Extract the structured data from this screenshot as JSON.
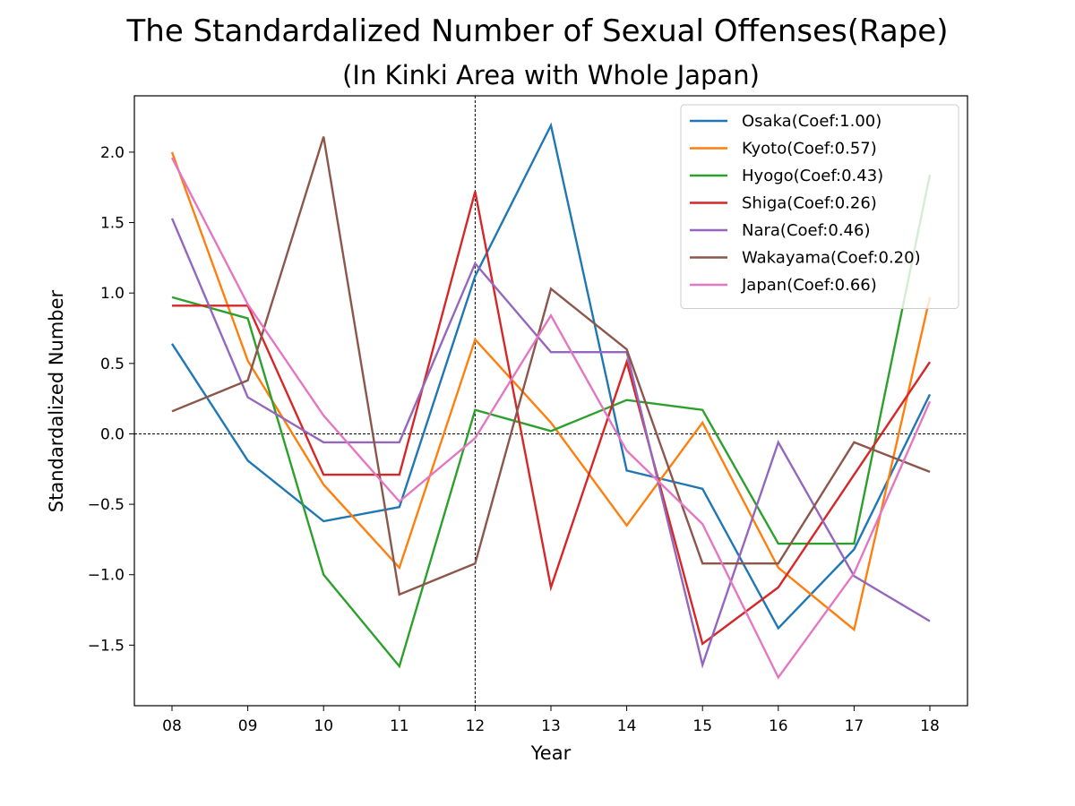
{
  "chart_data": {
    "type": "line",
    "title": "The Standardalized Number of Sexual Offenses(Rape)",
    "subtitle": "(In Kinki Area with Whole Japan)",
    "xlabel": "Year",
    "ylabel": "Standardalized Number",
    "categories": [
      "08",
      "09",
      "10",
      "11",
      "12",
      "13",
      "14",
      "15",
      "16",
      "17",
      "18"
    ],
    "ylim": [
      -1.93,
      2.4
    ],
    "yticks": [
      {
        "value": 2.0,
        "label": "2.0"
      },
      {
        "value": 1.5,
        "label": "1.5"
      },
      {
        "value": 1.0,
        "label": "1.0"
      },
      {
        "value": 0.5,
        "label": "0.5"
      },
      {
        "value": 0.0,
        "label": "0.0"
      },
      {
        "value": -0.5,
        "label": "−0.5"
      },
      {
        "value": -1.0,
        "label": "−1.0"
      },
      {
        "value": -1.5,
        "label": "−1.5"
      }
    ],
    "reference_lines": {
      "vertical_category": "12",
      "horizontal_value": 0.0
    },
    "grid": false,
    "legend_placement": "top-right",
    "series": [
      {
        "name": "Osaka(Coef:1.00)",
        "color": "#1f77b4",
        "values": [
          0.64,
          -0.19,
          -0.62,
          -0.52,
          1.12,
          2.19,
          -0.26,
          -0.39,
          -1.38,
          -0.82,
          0.28
        ]
      },
      {
        "name": "Kyoto(Coef:0.57)",
        "color": "#ff7f0e",
        "values": [
          2.0,
          0.52,
          -0.36,
          -0.95,
          0.67,
          0.08,
          -0.65,
          0.08,
          -0.95,
          -1.39,
          0.97
        ]
      },
      {
        "name": "Hyogo(Coef:0.43)",
        "color": "#2ca02c",
        "values": [
          0.97,
          0.82,
          -1.0,
          -1.65,
          0.17,
          0.02,
          0.24,
          0.17,
          -0.78,
          -0.78,
          1.84
        ]
      },
      {
        "name": "Shiga(Coef:0.26)",
        "color": "#d62728",
        "values": [
          0.91,
          0.91,
          -0.29,
          -0.29,
          1.72,
          -1.09,
          0.51,
          -1.49,
          -1.09,
          -0.29,
          0.51
        ]
      },
      {
        "name": "Nara(Coef:0.46)",
        "color": "#9467bd",
        "values": [
          1.53,
          0.26,
          -0.06,
          -0.06,
          1.21,
          0.58,
          0.58,
          -1.64,
          -0.06,
          -1.01,
          -1.33
        ]
      },
      {
        "name": "Wakayama(Coef:0.20)",
        "color": "#8c564b",
        "values": [
          0.16,
          0.38,
          2.11,
          -1.14,
          -0.92,
          1.03,
          0.6,
          -0.92,
          -0.92,
          -0.06,
          -0.27
        ]
      },
      {
        "name": "Japan(Coef:0.66)",
        "color": "#e377c2",
        "values": [
          1.96,
          0.92,
          0.13,
          -0.48,
          -0.03,
          0.84,
          -0.12,
          -0.64,
          -1.73,
          -0.99,
          0.23
        ]
      }
    ]
  }
}
